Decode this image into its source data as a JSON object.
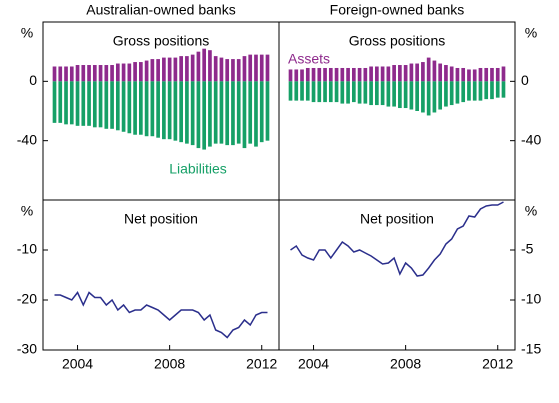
{
  "chart_data": [
    {
      "type": "bar",
      "column_title": "Australian-owned banks",
      "title": "Gross positions",
      "y_unit": "%",
      "axis_side": "left",
      "xlim": [
        2002.5,
        2012.75
      ],
      "ylim": [
        -80,
        40
      ],
      "yticks": [
        -40,
        0
      ],
      "x": [
        2003,
        2003.25,
        2003.5,
        2003.75,
        2004,
        2004.25,
        2004.5,
        2004.75,
        2005,
        2005.25,
        2005.5,
        2005.75,
        2006,
        2006.25,
        2006.5,
        2006.75,
        2007,
        2007.25,
        2007.5,
        2007.75,
        2008,
        2008.25,
        2008.5,
        2008.75,
        2009,
        2009.25,
        2009.5,
        2009.75,
        2010,
        2010.25,
        2010.5,
        2010.75,
        2011,
        2011.25,
        2011.5,
        2011.75,
        2012,
        2012.25
      ],
      "series": [
        {
          "name": "Assets",
          "color": "#8e2a8c",
          "values": [
            10,
            10,
            10,
            10,
            11,
            11,
            11,
            11,
            11,
            11,
            11,
            12,
            12,
            12,
            13,
            13,
            14,
            15,
            15,
            16,
            16,
            16,
            17,
            17,
            18,
            20,
            22,
            21,
            17,
            16,
            15,
            15,
            15,
            17,
            18,
            18,
            18,
            18
          ]
        },
        {
          "name": "Liabilities",
          "color": "#16a067",
          "values": [
            -28,
            -28,
            -29,
            -29,
            -30,
            -30,
            -30,
            -31,
            -31,
            -32,
            -32,
            -33,
            -34,
            -35,
            -36,
            -36,
            -37,
            -37,
            -38,
            -39,
            -39,
            -40,
            -41,
            -42,
            -43,
            -45,
            -46,
            -44,
            -42,
            -42,
            -43,
            -43,
            -42,
            -45,
            -42,
            -44,
            -41,
            -40
          ]
        }
      ]
    },
    {
      "type": "bar",
      "column_title": "Foreign-owned banks",
      "title": "Gross positions",
      "y_unit": "%",
      "axis_side": "right",
      "xlim": [
        2002.5,
        2012.75
      ],
      "ylim": [
        -80,
        40
      ],
      "yticks": [
        -40,
        0
      ],
      "x": [
        2003,
        2003.25,
        2003.5,
        2003.75,
        2004,
        2004.25,
        2004.5,
        2004.75,
        2005,
        2005.25,
        2005.5,
        2005.75,
        2006,
        2006.25,
        2006.5,
        2006.75,
        2007,
        2007.25,
        2007.5,
        2007.75,
        2008,
        2008.25,
        2008.5,
        2008.75,
        2009,
        2009.25,
        2009.5,
        2009.75,
        2010,
        2010.25,
        2010.5,
        2010.75,
        2011,
        2011.25,
        2011.5,
        2011.75,
        2012,
        2012.25
      ],
      "series": [
        {
          "color": "#8e2a8c",
          "values": [
            8,
            8,
            8,
            9,
            9,
            9,
            9,
            9,
            9,
            9,
            9,
            9,
            9,
            9,
            10,
            10,
            10,
            10,
            11,
            11,
            11,
            12,
            12,
            13,
            16,
            14,
            12,
            11,
            10,
            9,
            9,
            8,
            8,
            9,
            9,
            9,
            9,
            10
          ]
        },
        {
          "color": "#16a067",
          "values": [
            -13,
            -13,
            -13,
            -13,
            -14,
            -14,
            -14,
            -14,
            -14,
            -15,
            -15,
            -14,
            -15,
            -15,
            -16,
            -16,
            -16,
            -17,
            -17,
            -18,
            -18,
            -19,
            -20,
            -21,
            -23,
            -21,
            -19,
            -17,
            -16,
            -15,
            -14,
            -13,
            -13,
            -13,
            -12,
            -12,
            -11,
            -11
          ]
        }
      ]
    },
    {
      "type": "line",
      "title": "Net position",
      "y_unit": "%",
      "axis_side": "left",
      "xlim": [
        2002.5,
        2012.75
      ],
      "xticks": [
        2004,
        2008,
        2012
      ],
      "ylim": [
        -30,
        0
      ],
      "yticks": [
        -30,
        -20,
        -10
      ],
      "x": [
        2003,
        2003.25,
        2003.5,
        2003.75,
        2004,
        2004.25,
        2004.5,
        2004.75,
        2005,
        2005.25,
        2005.5,
        2005.75,
        2006,
        2006.25,
        2006.5,
        2006.75,
        2007,
        2007.25,
        2007.5,
        2007.75,
        2008,
        2008.25,
        2008.5,
        2008.75,
        2009,
        2009.25,
        2009.5,
        2009.75,
        2010,
        2010.25,
        2010.5,
        2010.75,
        2011,
        2011.25,
        2011.5,
        2011.75,
        2012,
        2012.25
      ],
      "series": [
        {
          "color": "#2b2f8c",
          "values": [
            -19,
            -19,
            -19.5,
            -20,
            -18.5,
            -21,
            -18.5,
            -19.5,
            -19.5,
            -21,
            -20,
            -22,
            -21,
            -22.5,
            -22,
            -22,
            -21,
            -21.5,
            -22,
            -23,
            -24,
            -23,
            -22,
            -22,
            -22,
            -22.5,
            -24,
            -23,
            -26,
            -26.5,
            -27.5,
            -26,
            -25.5,
            -24,
            -25,
            -23,
            -22.5,
            -22.5
          ]
        }
      ]
    },
    {
      "type": "line",
      "title": "Net position",
      "y_unit": "%",
      "axis_side": "right",
      "xlim": [
        2002.5,
        2012.75
      ],
      "xticks": [
        2004,
        2008,
        2012
      ],
      "ylim": [
        -15,
        0
      ],
      "yticks": [
        -15,
        -10,
        -5
      ],
      "x": [
        2003,
        2003.25,
        2003.5,
        2003.75,
        2004,
        2004.25,
        2004.5,
        2004.75,
        2005,
        2005.25,
        2005.5,
        2005.75,
        2006,
        2006.25,
        2006.5,
        2006.75,
        2007,
        2007.25,
        2007.5,
        2007.75,
        2008,
        2008.25,
        2008.5,
        2008.75,
        2009,
        2009.25,
        2009.5,
        2009.75,
        2010,
        2010.25,
        2010.5,
        2010.75,
        2011,
        2011.25,
        2011.5,
        2011.75,
        2012,
        2012.25
      ],
      "series": [
        {
          "color": "#2b2f8c",
          "values": [
            -5,
            -4.6,
            -5.5,
            -5.8,
            -6,
            -5,
            -5,
            -5.8,
            -5,
            -4.2,
            -4.6,
            -5.2,
            -5,
            -5.3,
            -5.6,
            -6,
            -6.4,
            -6.3,
            -5.8,
            -7.4,
            -6.3,
            -6.8,
            -7.6,
            -7.5,
            -6.8,
            -6,
            -5.4,
            -4.4,
            -3.9,
            -2.9,
            -2.6,
            -1.6,
            -1.7,
            -0.9,
            -0.6,
            -0.5,
            -0.5,
            -0.2
          ]
        }
      ]
    }
  ]
}
